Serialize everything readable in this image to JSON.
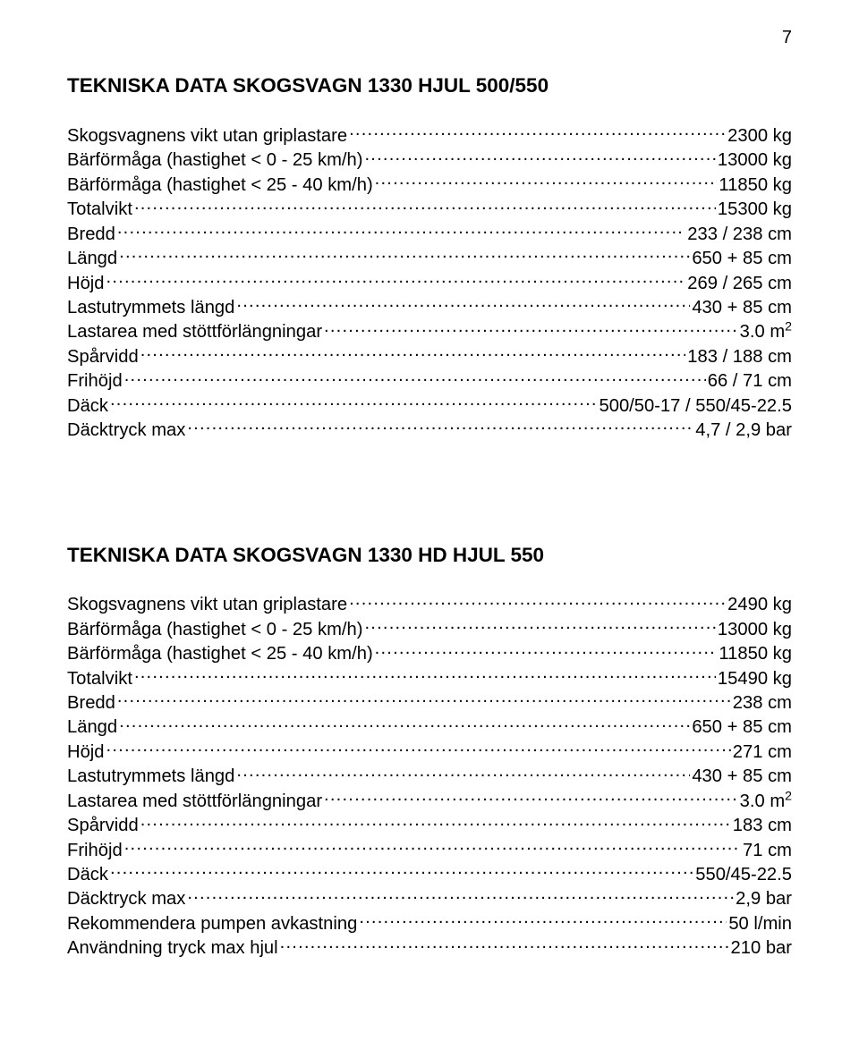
{
  "page_number": "7",
  "sections": [
    {
      "title": "TEKNISKA DATA SKOGSVAGN 1330 HJUL 500/550",
      "rows": [
        {
          "label": "Skogsvagnens vikt utan griplastare",
          "value": "2300 kg"
        },
        {
          "label": "Bärförmåga (hastighet < 0 - 25 km/h)",
          "value": "13000 kg"
        },
        {
          "label": "Bärförmåga (hastighet < 25 - 40 km/h)",
          "value": "11850 kg"
        },
        {
          "label": "Totalvikt",
          "value": "15300 kg"
        },
        {
          "label": "Bredd",
          "value": "233 / 238 cm"
        },
        {
          "label": "Längd",
          "value": "650 + 85 cm"
        },
        {
          "label": "Höjd",
          "value": "269 / 265  cm"
        },
        {
          "label": "Lastutrymmets längd",
          "value": "430 + 85 cm"
        },
        {
          "label": "Lastarea med stöttförlängningar",
          "value": " 3.0 m",
          "sup": "2"
        },
        {
          "label": "Spårvidd",
          "value": "183 / 188 cm"
        },
        {
          "label": "Frihöjd",
          "value": "66 / 71 cm"
        },
        {
          "label": "Däck",
          "value": " 500/50-17 / 550/45-22.5"
        },
        {
          "label": "Däcktryck max",
          "value": " 4,7 / 2,9 bar"
        }
      ]
    },
    {
      "title": "TEKNISKA DATA SKOGSVAGN 1330 HD HJUL 550",
      "rows": [
        {
          "label": "Skogsvagnens vikt utan griplastare",
          "value": "2490 kg"
        },
        {
          "label": "Bärförmåga (hastighet < 0 - 25 km/h)",
          "value": "13000 kg"
        },
        {
          "label": "Bärförmåga (hastighet < 25 - 40 km/h)",
          "value": "11850 kg"
        },
        {
          "label": "Totalvikt",
          "value": "15490 kg"
        },
        {
          "label": "Bredd",
          "value": "238 cm"
        },
        {
          "label": "Längd",
          "value": "650 + 85 cm"
        },
        {
          "label": "Höjd",
          "value": "271 cm"
        },
        {
          "label": "Lastutrymmets längd",
          "value": "430 + 85 cm"
        },
        {
          "label": "Lastarea med stöttförlängningar",
          "value": " 3.0 m",
          "sup": "2"
        },
        {
          "label": "Spårvidd",
          "value": "183 cm"
        },
        {
          "label": "Frihöjd",
          "value": "71 cm"
        },
        {
          "label": "Däck",
          "value": " 550/45-22.5"
        },
        {
          "label": "Däcktryck max",
          "value": " 2,9 bar"
        },
        {
          "label": "Rekommendera  pumpen avkastning",
          "value": "50 l/min"
        },
        {
          "label": "Användning tryck max hjul",
          "value": " 210 bar"
        }
      ]
    }
  ]
}
